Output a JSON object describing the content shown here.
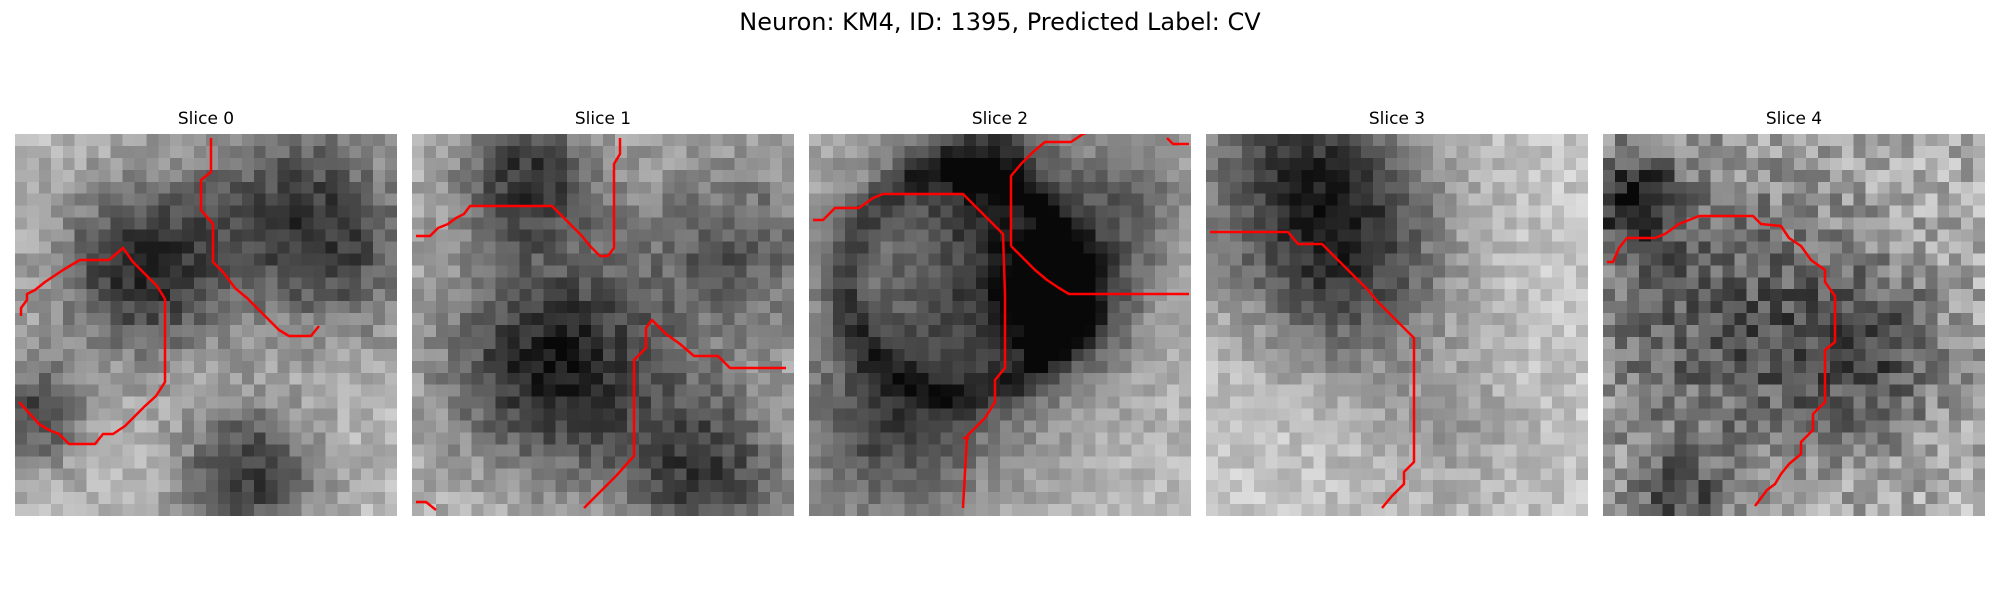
{
  "figure": {
    "title": "Neuron: KM4, ID: 1395, Predicted Label: CV",
    "contour_color": "#ff0000"
  },
  "panels": [
    {
      "title": "Slice 0"
    },
    {
      "title": "Slice 1"
    },
    {
      "title": "Slice 2"
    },
    {
      "title": "Slice 3"
    },
    {
      "title": "Slice 4"
    }
  ]
}
